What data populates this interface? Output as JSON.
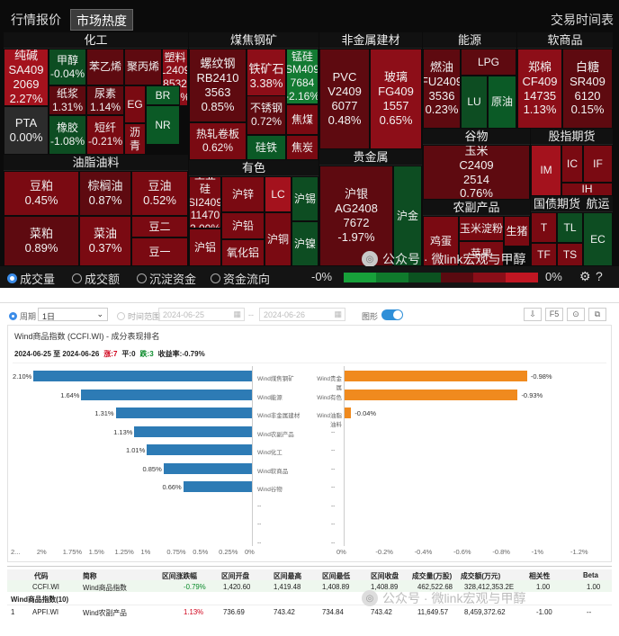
{
  "top": {
    "tabs": [
      "行情报价",
      "市场热度",
      "交易时间表"
    ],
    "sectors": [
      "化工",
      "煤焦钢矿",
      "非金属建材",
      "能源",
      "软商品",
      "油脂油料",
      "有色",
      "贵金属",
      "谷物",
      "股指期货",
      "农副产品",
      "国债期货",
      "航运"
    ],
    "cells": {
      "c1": [
        "纯碱",
        "SA409",
        "2069",
        "2.27%"
      ],
      "c2": [
        "甲醇",
        "-0.04%"
      ],
      "c3": [
        "苯乙烯"
      ],
      "c4": [
        "聚丙烯"
      ],
      "c5": [
        "塑料",
        "L2409",
        "8532",
        "0.11%"
      ],
      "c6": [
        "纸浆",
        "1.31%"
      ],
      "c7": [
        "尿素",
        "1.14%"
      ],
      "c8": [
        "EG"
      ],
      "c9": [
        "BR"
      ],
      "c10": [
        "PTA",
        "0.00%"
      ],
      "c11": [
        "橡胶",
        "-1.08%"
      ],
      "c12": [
        "短纤",
        "-0.21%"
      ],
      "c13": [
        "沥青"
      ],
      "c14": [
        "NR"
      ],
      "c15": [
        "螺纹钢",
        "RB2410",
        "3563",
        "0.85%"
      ],
      "c16": [
        "铁矿石",
        "3.38%"
      ],
      "c17": [
        "锰硅",
        "SM409",
        "7684",
        "-2.16%"
      ],
      "c18": [
        "不锈钢",
        "0.72%"
      ],
      "c19": [
        "焦煤"
      ],
      "c20": [
        "热轧卷板",
        "0.62%"
      ],
      "c21": [
        "硅铁"
      ],
      "c22": [
        "焦炭"
      ],
      "c23": [
        "PVC",
        "V2409",
        "6077",
        "0.48%"
      ],
      "c24": [
        "玻璃",
        "FG409",
        "1557",
        "0.65%"
      ],
      "c25": [
        "燃油",
        "FU2409",
        "3536",
        "0.23%"
      ],
      "c26": [
        "LPG"
      ],
      "c27": [
        "LU"
      ],
      "c28": [
        "原油"
      ],
      "c29": [
        "郑棉",
        "CF409",
        "14735",
        "1.13%"
      ],
      "c30": [
        "白糖",
        "SR409",
        "6120",
        "0.15%"
      ],
      "c31": [
        "豆粕",
        "0.45%"
      ],
      "c32": [
        "棕榈油",
        "0.87%"
      ],
      "c33": [
        "豆油",
        "0.52%"
      ],
      "c34": [
        "菜粕",
        "0.89%"
      ],
      "c35": [
        "菜油",
        "0.37%"
      ],
      "c36": [
        "豆二"
      ],
      "c37": [
        "豆一"
      ],
      "c38": [
        "工业硅",
        "SI2409",
        "11470",
        "2.00%"
      ],
      "c39": [
        "沪锌"
      ],
      "c40": [
        "LC"
      ],
      "c41": [
        "沪锡"
      ],
      "c42": [
        "沪铝"
      ],
      "c43": [
        "沪铅"
      ],
      "c44": [
        "氧化铝"
      ],
      "c45": [
        "沪铜"
      ],
      "c46": [
        "沪镍"
      ],
      "c47": [
        "沪银",
        "AG2408",
        "7672",
        "-1.97%"
      ],
      "c48": [
        "沪金"
      ],
      "c49": [
        "玉米",
        "C2409",
        "2514",
        "0.76%"
      ],
      "c50": [
        "IM"
      ],
      "c51": [
        "IC"
      ],
      "c52": [
        "IF"
      ],
      "c53": [
        "IH"
      ],
      "c54": [
        "鸡蛋"
      ],
      "c55": [
        "玉米淀粉"
      ],
      "c56": [
        "生猪"
      ],
      "c57": [
        "苹果"
      ],
      "c58": [
        "T"
      ],
      "c59": [
        "TL"
      ],
      "c60": [
        "EC"
      ],
      "c61": [
        "TF"
      ],
      "c62": [
        "TS"
      ]
    },
    "radio": [
      "成交量",
      "成交额",
      "沉淀资金",
      "资金流向"
    ],
    "scale": [
      "-0%",
      "0%"
    ],
    "watermark": "公众号 · 微link宏观与甲醇"
  },
  "bottom": {
    "period_label": "周期",
    "period_value": "1日",
    "range_label": "时间范围",
    "date_from": "2024-06-25",
    "date_to": "2024-06-26",
    "chart_toggle": "图形",
    "f5": "F5",
    "title": "Wind商品指数 (CCFI.WI) - 成分表现排名",
    "range_text": "2024-06-25 至 2024-06-26",
    "up": "涨:7",
    "flat": "平:0",
    "down": "跌:3",
    "ret": "收益率:-0.79%",
    "dash": "--",
    "chart_data": [
      {
        "type": "bar",
        "orientation": "horizontal",
        "title": "",
        "categories": [
          "Wind煤焦钢矿",
          "Wind能源",
          "Wind非金属建材",
          "Wind农副产品",
          "Wind化工",
          "Wind软商品",
          "Wind谷物"
        ],
        "values": [
          2.1,
          1.64,
          1.31,
          1.13,
          1.01,
          0.85,
          0.66
        ],
        "labels": [
          "2.10%",
          "1.64%",
          "1.31%",
          "1.13%",
          "1.01%",
          "0.85%",
          "0.66%"
        ],
        "xlim": [
          2.25,
          0
        ],
        "xticks": [
          "2...",
          "2%",
          "1.75%",
          "1.5%",
          "1.25%",
          "1%",
          "0.75%",
          "0.5%",
          "0.25%",
          "0%"
        ],
        "color": "#2d7bb5"
      },
      {
        "type": "bar",
        "orientation": "horizontal",
        "title": "",
        "categories": [
          "Wind贵金属",
          "Wind有色",
          "Wind油脂油料"
        ],
        "values": [
          -0.98,
          -0.93,
          -0.04
        ],
        "labels": [
          "-0.98%",
          "-0.93%",
          "-0.04%"
        ],
        "xlim": [
          0,
          -1.25
        ],
        "xticks": [
          "0%",
          "-0.2%",
          "-0.4%",
          "-0.6%",
          "-0.8%",
          "-1%",
          "-1.2%"
        ],
        "color": "#f08a1e"
      }
    ],
    "table": {
      "headers": [
        "代码",
        "简称",
        "区间涨跌幅",
        "区间开盘",
        "区间最高",
        "区间最低",
        "区间收盘",
        "成交量(万股)",
        "成交额(万元)",
        "相关性",
        "Beta"
      ],
      "row1": [
        "",
        "CCFI.WI",
        "Wind商品指数",
        "-0.79%",
        "1,420.60",
        "1,419.48",
        "1,408.89",
        "1,408.89",
        "462,522.68",
        "328,412,353.2E",
        "1.00",
        "1.00"
      ],
      "group": "Wind商品指数(10)",
      "row2": [
        "1",
        "APFI.WI",
        "Wind农副产品",
        "1.13%",
        "736.69",
        "743.42",
        "734.84",
        "743.42",
        "11,649.57",
        "8,459,372.62",
        "-1.00",
        "--"
      ]
    }
  }
}
